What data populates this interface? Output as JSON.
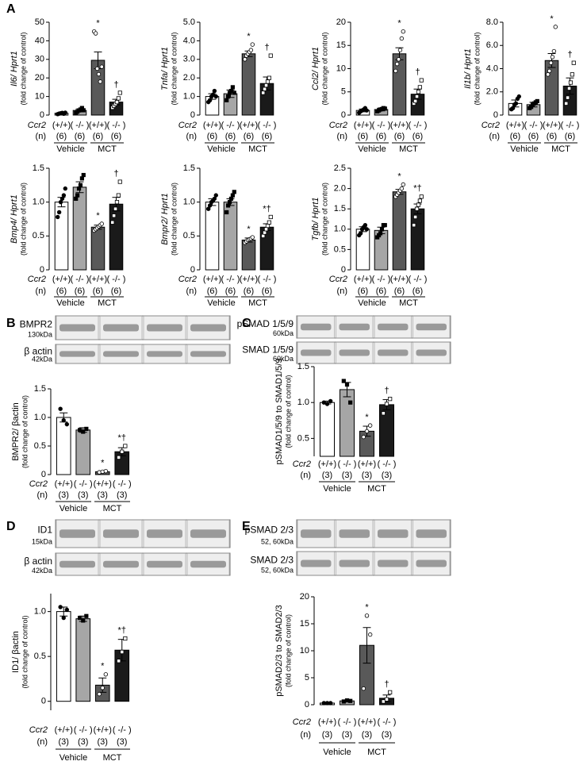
{
  "panels": [
    "A",
    "B",
    "C",
    "D",
    "E"
  ],
  "blots": [
    {
      "rows": [
        {
          "label": "BMPR2",
          "kda": "130kDa"
        },
        {
          "label": "β actin",
          "kda": "42kDa"
        }
      ]
    },
    {
      "rows": [
        {
          "label": "pSMAD 1/5/9",
          "kda": "60kDa"
        },
        {
          "label": "SMAD 1/5/9",
          "kda": "60kDa"
        }
      ]
    },
    {
      "rows": [
        {
          "label": "ID1",
          "kda": "15kDa"
        },
        {
          "label": "β actin",
          "kda": "42kDa"
        }
      ]
    },
    {
      "rows": [
        {
          "label": "pSMAD 2/3",
          "kda": "52, 60kDa"
        },
        {
          "label": "SMAD 2/3",
          "kda": "52, 60kDa"
        }
      ]
    }
  ],
  "chart_data": [
    {
      "type": "bar",
      "ylabel": "Il6/ Hprt1",
      "italic_label": true,
      "ylabel2": "(fold change of control)",
      "categories": [
        "(+/+)",
        "( -/- )",
        "(+/+)",
        "( -/- )"
      ],
      "n": [
        "(6)",
        "(6)",
        "(6)",
        "(6)"
      ],
      "groups": [
        "Vehicle",
        "MCT"
      ],
      "row_labels": [
        "Ccr2",
        "(n)"
      ],
      "colors": [
        "#ffffff",
        "#a6a6a6",
        "#595959",
        "#1a1a1a"
      ],
      "values": [
        1,
        2.5,
        29.5,
        7
      ],
      "errors": [
        0.3,
        0.8,
        4.5,
        1.5
      ],
      "points": [
        [
          0.5,
          0.8,
          1.0,
          1.2,
          0.7,
          1.3
        ],
        [
          1.2,
          1.8,
          2.5,
          3.0,
          3.8,
          2.6
        ],
        [
          45,
          44,
          25,
          22,
          18,
          26
        ],
        [
          4,
          5,
          6,
          7,
          9,
          12
        ]
      ],
      "annotations": [
        {
          "index": 2,
          "text": "*"
        },
        {
          "index": 3,
          "text": "†"
        }
      ],
      "ylim": [
        0,
        50
      ],
      "yticks": [
        0,
        10,
        20,
        30,
        40,
        50
      ]
    },
    {
      "type": "bar",
      "ylabel": "Tnfa/ Hprt1",
      "italic_label": true,
      "ylabel2": "(fold change of control)",
      "categories": [
        "(+/+)",
        "( -/- )",
        "(+/+)",
        "( -/- )"
      ],
      "n": [
        "(6)",
        "(6)",
        "(6)",
        "(6)"
      ],
      "groups": [
        "Vehicle",
        "MCT"
      ],
      "row_labels": [
        "Ccr2",
        "(n)"
      ],
      "colors": [
        "#ffffff",
        "#a6a6a6",
        "#595959",
        "#1a1a1a"
      ],
      "values": [
        1.0,
        1.15,
        3.3,
        1.7
      ],
      "errors": [
        0.15,
        0.2,
        0.15,
        0.35
      ],
      "points": [
        [
          0.7,
          0.8,
          1.0,
          1.1,
          1.3,
          1.0
        ],
        [
          0.8,
          1.0,
          1.2,
          1.3,
          1.5,
          1.2
        ],
        [
          3.0,
          3.2,
          3.3,
          3.4,
          3.5,
          3.8
        ],
        [
          1.2,
          1.4,
          1.6,
          1.8,
          2.0,
          3.2
        ]
      ],
      "annotations": [
        {
          "index": 2,
          "text": "*"
        },
        {
          "index": 3,
          "text": "†"
        }
      ],
      "ylim": [
        0,
        5
      ],
      "yticks": [
        0,
        {
          "value": 1,
          "label": "1.0"
        },
        {
          "value": 2,
          "label": "2.0"
        },
        {
          "value": 3,
          "label": "3.0"
        },
        {
          "value": 4,
          "label": "4.0"
        },
        {
          "value": 5,
          "label": "5.0"
        }
      ]
    },
    {
      "type": "bar",
      "ylabel": "Ccl2/ Hprt1",
      "italic_label": true,
      "ylabel2": "(fold change of control)",
      "categories": [
        "(+/+)",
        "( -/- )",
        "(+/+)",
        "( -/- )"
      ],
      "n": [
        "(6)",
        "(6)",
        "(6)",
        "(6)"
      ],
      "groups": [
        "Vehicle",
        "MCT"
      ],
      "row_labels": [
        "Ccr2",
        "(n)"
      ],
      "colors": [
        "#ffffff",
        "#a6a6a6",
        "#595959",
        "#1a1a1a"
      ],
      "values": [
        1,
        1.2,
        13.2,
        4.5
      ],
      "errors": [
        0.3,
        0.3,
        1.3,
        1.1
      ],
      "points": [
        [
          0.5,
          0.8,
          1.0,
          1.2,
          1.5,
          1.0
        ],
        [
          0.8,
          1.0,
          1.2,
          1.3,
          1.5,
          1.4
        ],
        [
          9.5,
          11,
          12,
          14,
          16.5,
          18
        ],
        [
          2.5,
          3.0,
          4.0,
          5.0,
          6.0,
          7.5
        ]
      ],
      "annotations": [
        {
          "index": 2,
          "text": "*"
        },
        {
          "index": 3,
          "text": "†"
        }
      ],
      "ylim": [
        0,
        20
      ],
      "yticks": [
        0,
        5,
        10,
        15,
        20
      ]
    },
    {
      "type": "bar",
      "ylabel": "Il1b/ Hprt1",
      "italic_label": true,
      "ylabel2": "(fold change of control)",
      "categories": [
        "(+/+)",
        "( -/- )",
        "(+/+)",
        "( -/- )"
      ],
      "n": [
        "(6)",
        "(6)",
        "(6)",
        "(6)"
      ],
      "groups": [
        "Vehicle",
        "MCT"
      ],
      "row_labels": [
        "Ccr2",
        "(n)"
      ],
      "colors": [
        "#ffffff",
        "#a6a6a6",
        "#595959",
        "#1a1a1a"
      ],
      "values": [
        1.0,
        0.9,
        4.7,
        2.5
      ],
      "errors": [
        0.3,
        0.2,
        0.6,
        0.7
      ],
      "points": [
        [
          0.5,
          0.6,
          0.9,
          1.0,
          1.4,
          1.6
        ],
        [
          0.6,
          0.7,
          0.9,
          1.0,
          1.1,
          1.2
        ],
        [
          3.5,
          3.8,
          4.5,
          5.0,
          5.5,
          7.6
        ],
        [
          1.0,
          1.5,
          2.3,
          2.8,
          3.5,
          4.5
        ]
      ],
      "annotations": [
        {
          "index": 2,
          "text": "*"
        },
        {
          "index": 3,
          "text": "†"
        }
      ],
      "ylim": [
        0,
        8
      ],
      "yticks": [
        0,
        {
          "value": 2,
          "label": "2.0"
        },
        {
          "value": 4,
          "label": "4.0"
        },
        {
          "value": 6,
          "label": "6.0"
        },
        {
          "value": 8,
          "label": "8.0"
        }
      ]
    },
    {
      "type": "bar",
      "ylabel": "Bmp4/ Hprt1",
      "italic_label": true,
      "ylabel2": "(fold change of control)",
      "categories": [
        "(+/+)",
        "( -/- )",
        "(+/+)",
        "( -/- )"
      ],
      "n": [
        "(6)",
        "(6)",
        "(6)",
        "(6)"
      ],
      "groups": [
        "Vehicle",
        "MCT"
      ],
      "row_labels": [
        "Ccr2",
        "(n)"
      ],
      "colors": [
        "#ffffff",
        "#a6a6a6",
        "#595959",
        "#1a1a1a"
      ],
      "values": [
        1.0,
        1.22,
        0.63,
        0.97
      ],
      "errors": [
        0.07,
        0.08,
        0.03,
        0.1
      ],
      "points": [
        [
          0.78,
          0.85,
          1.0,
          1.05,
          1.1,
          1.2
        ],
        [
          1.05,
          1.1,
          1.2,
          1.25,
          1.35,
          1.4
        ],
        [
          0.58,
          0.6,
          0.62,
          0.64,
          0.66,
          0.68
        ],
        [
          0.7,
          0.8,
          0.9,
          1.0,
          1.1,
          1.3
        ]
      ],
      "annotations": [
        {
          "index": 2,
          "text": "*"
        },
        {
          "index": 3,
          "text": "†"
        }
      ],
      "ylim": [
        0,
        1.5
      ],
      "yticks": [
        0,
        0.5,
        {
          "value": 1,
          "label": "1.0"
        },
        1.5
      ]
    },
    {
      "type": "bar",
      "ylabel": "Bmpr2/ Hprt1",
      "italic_label": true,
      "ylabel2": "(fold change of control)",
      "categories": [
        "(+/+)",
        "( -/- )",
        "(+/+)",
        "( -/- )"
      ],
      "n": [
        "(6)",
        "(6)",
        "(6)",
        "(6)"
      ],
      "groups": [
        "Vehicle",
        "MCT"
      ],
      "row_labels": [
        "Ccr2",
        "(n)"
      ],
      "colors": [
        "#ffffff",
        "#a6a6a6",
        "#595959",
        "#1a1a1a"
      ],
      "values": [
        1.0,
        1.0,
        0.44,
        0.63
      ],
      "errors": [
        0.05,
        0.05,
        0.03,
        0.05
      ],
      "points": [
        [
          0.9,
          0.95,
          1.0,
          1.02,
          1.05,
          1.1
        ],
        [
          0.85,
          0.95,
          1.0,
          1.05,
          1.1,
          1.15
        ],
        [
          0.4,
          0.42,
          0.44,
          0.45,
          0.46,
          0.48
        ],
        [
          0.5,
          0.55,
          0.6,
          0.65,
          0.7,
          0.78
        ]
      ],
      "annotations": [
        {
          "index": 2,
          "text": "*"
        },
        {
          "index": 3,
          "text": "*†"
        }
      ],
      "ylim": [
        0,
        1.5
      ],
      "yticks": [
        0,
        0.5,
        {
          "value": 1,
          "label": "1.0"
        },
        1.5
      ]
    },
    {
      "type": "bar",
      "ylabel": "Tgfb/ Hprt1",
      "italic_label": true,
      "ylabel2": "(fold change of control)",
      "categories": [
        "(+/+)",
        "( -/- )",
        "(+/+)",
        "( -/- )"
      ],
      "n": [
        "(6)",
        "(6)",
        "(6)",
        "(6)"
      ],
      "groups": [
        "Vehicle",
        "MCT"
      ],
      "row_labels": [
        "Ccr2",
        "(n)"
      ],
      "colors": [
        "#ffffff",
        "#a6a6a6",
        "#595959",
        "#1a1a1a"
      ],
      "values": [
        1.0,
        0.97,
        1.92,
        1.5
      ],
      "errors": [
        0.06,
        0.08,
        0.06,
        0.12
      ],
      "points": [
        [
          0.85,
          0.9,
          1.0,
          1.05,
          1.1,
          1.0
        ],
        [
          0.8,
          0.85,
          0.9,
          1.0,
          1.1,
          1.1
        ],
        [
          1.8,
          1.85,
          1.9,
          1.95,
          2.0,
          2.1
        ],
        [
          1.1,
          1.3,
          1.5,
          1.6,
          1.7,
          1.8
        ]
      ],
      "annotations": [
        {
          "index": 2,
          "text": "*"
        },
        {
          "index": 3,
          "text": "*†"
        }
      ],
      "ylim": [
        0,
        2.5
      ],
      "yticks": [
        0,
        0.5,
        {
          "value": 1,
          "label": "1.0"
        },
        1.5,
        {
          "value": 2,
          "label": "2.0"
        },
        2.5
      ]
    },
    {
      "type": "bar",
      "ylabel": "BMPR2/ βactin",
      "ylabel2": "(fold change of control)",
      "categories": [
        "(+/+)",
        "( -/- )",
        "(+/+)",
        "( -/- )"
      ],
      "n": [
        "(3)",
        "(3)",
        "(3)",
        "(3)"
      ],
      "groups": [
        "Vehicle",
        "MCT"
      ],
      "row_labels": [
        "Ccr2",
        "(n)"
      ],
      "colors": [
        "#ffffff",
        "#a6a6a6",
        "#595959",
        "#1a1a1a"
      ],
      "values": [
        1.0,
        0.78,
        0.05,
        0.4
      ],
      "errors": [
        0.08,
        0.04,
        0.01,
        0.07
      ],
      "points": [
        [
          1.15,
          0.95,
          0.88
        ],
        [
          0.78,
          0.75,
          0.8
        ],
        [
          0.04,
          0.05,
          0.06
        ],
        [
          0.3,
          0.4,
          0.5
        ]
      ],
      "annotations": [
        {
          "index": 2,
          "text": "*"
        },
        {
          "index": 3,
          "text": "*†"
        }
      ],
      "ylim": [
        0,
        1.5
      ],
      "yticks": [
        0,
        0.5,
        {
          "value": 1,
          "label": "1.0"
        },
        1.5
      ]
    },
    {
      "type": "bar",
      "ylabel": "pSMAD1/5/9 to SMAD1/5/9",
      "ylabel2": "(fold change of control)",
      "categories": [
        "(+/+)",
        "( -/- )",
        "(+/+)",
        "( -/- )"
      ],
      "n": [
        "(3)",
        "(3)",
        "(3)",
        "(3)"
      ],
      "groups": [
        "Vehicle",
        "MCT"
      ],
      "row_labels": [
        "Ccr2",
        "(n)"
      ],
      "colors": [
        "#ffffff",
        "#a6a6a6",
        "#595959",
        "#1a1a1a"
      ],
      "values": [
        1.0,
        1.18,
        0.6,
        0.97
      ],
      "errors": [
        0.02,
        0.1,
        0.07,
        0.07
      ],
      "points": [
        [
          1.0,
          0.98,
          1.02
        ],
        [
          1.3,
          1.25,
          1.0
        ],
        [
          0.52,
          0.6,
          0.68
        ],
        [
          0.85,
          0.98,
          1.05
        ]
      ],
      "annotations": [
        {
          "index": 2,
          "text": "*"
        },
        {
          "index": 3,
          "text": "†"
        }
      ],
      "ylim": [
        0.25,
        1.5
      ],
      "yticks": [
        0.5,
        {
          "value": 1,
          "label": "1.0"
        },
        1.5
      ]
    },
    {
      "type": "bar",
      "ylabel": "ID1/ βactin",
      "ylabel2": "(fold change of control)",
      "categories": [
        "(+/+)",
        "( -/- )",
        "(+/+)",
        "( -/- )"
      ],
      "n": [
        "(3)",
        "(3)",
        "(3)",
        "(3)"
      ],
      "groups": [
        "Vehicle",
        "MCT"
      ],
      "row_labels": [
        "Ccr2",
        "(n)"
      ],
      "colors": [
        "#ffffff",
        "#a6a6a6",
        "#595959",
        "#1a1a1a"
      ],
      "values": [
        1.0,
        0.92,
        0.18,
        0.57
      ],
      "errors": [
        0.05,
        0.03,
        0.08,
        0.12
      ],
      "points": [
        [
          1.05,
          0.93,
          1.02
        ],
        [
          0.93,
          0.9,
          0.95
        ],
        [
          0.08,
          0.15,
          0.3
        ],
        [
          0.45,
          0.55,
          0.7
        ]
      ],
      "annotations": [
        {
          "index": 2,
          "text": "*"
        },
        {
          "index": 3,
          "text": "*†"
        }
      ],
      "ylim": [
        -0.1,
        1.2
      ],
      "yticks": [
        0,
        0.5,
        {
          "value": 1,
          "label": "1.0"
        }
      ]
    },
    {
      "type": "bar",
      "ylabel": "pSMAD2/3 to SMAD2/3",
      "ylabel2": "(fold change of control)",
      "categories": [
        "(+/+)",
        "( -/- )",
        "(+/+)",
        "( -/- )"
      ],
      "n": [
        "(3)",
        "(3)",
        "(3)",
        "(3)"
      ],
      "groups": [
        "Vehicle",
        "MCT"
      ],
      "row_labels": [
        "Ccr2",
        "(n)"
      ],
      "colors": [
        "#ffffff",
        "#a6a6a6",
        "#595959",
        "#1a1a1a"
      ],
      "values": [
        0.3,
        0.7,
        11,
        1.2
      ],
      "errors": [
        0.1,
        0.1,
        3.3,
        0.6
      ],
      "points": [
        [
          0.3,
          0.3,
          0.3
        ],
        [
          0.6,
          0.8,
          0.7
        ],
        [
          3,
          16.5,
          13
        ],
        [
          0.6,
          1.0,
          2.3
        ]
      ],
      "annotations": [
        {
          "index": 2,
          "text": "*"
        },
        {
          "index": 3,
          "text": "†"
        }
      ],
      "ylim": [
        0,
        20
      ],
      "yticks": [
        0,
        5,
        10,
        15,
        20
      ]
    }
  ]
}
